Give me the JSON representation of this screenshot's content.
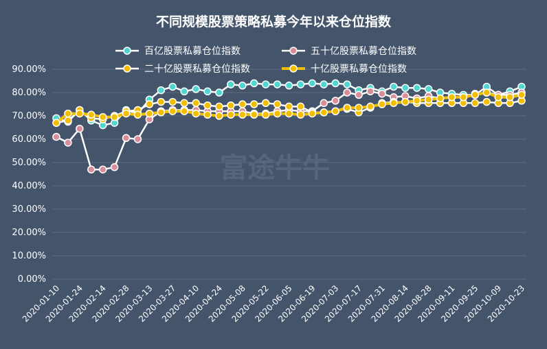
{
  "chart_data": {
    "type": "line",
    "title": "不同规模股票策略私募今年以来仓位指数",
    "watermark_text": "富途牛牛",
    "ylim": [
      0,
      90
    ],
    "y_ticks": [
      "0.00%",
      "10.00%",
      "20.00%",
      "30.00%",
      "40.00%",
      "50.00%",
      "60.00%",
      "70.00%",
      "80.00%",
      "90.00%"
    ],
    "x_tick_labels": [
      "2020-01-10",
      "2020-01-24",
      "2020-02-14",
      "2020-02-28",
      "2020-03-13",
      "2020-03-27",
      "2020-04-10",
      "2020-04-24",
      "2020-05-08",
      "2020-05-22",
      "2020-06-05",
      "2020-06-19",
      "2020-07-03",
      "2020-07-17",
      "2020-07-31",
      "2020-08-14",
      "2020-08-28",
      "2020-09-11",
      "2020-09-25",
      "2020-10-09",
      "2020-10-23"
    ],
    "x": [
      "2020-01-10",
      "2020-01-17",
      "2020-01-24",
      "2020-02-07",
      "2020-02-14",
      "2020-02-21",
      "2020-02-28",
      "2020-03-06",
      "2020-03-13",
      "2020-03-20",
      "2020-03-27",
      "2020-04-03",
      "2020-04-10",
      "2020-04-17",
      "2020-04-24",
      "2020-04-30",
      "2020-05-08",
      "2020-05-15",
      "2020-05-22",
      "2020-05-29",
      "2020-06-05",
      "2020-06-12",
      "2020-06-19",
      "2020-06-24",
      "2020-07-03",
      "2020-07-10",
      "2020-07-17",
      "2020-07-24",
      "2020-07-31",
      "2020-08-07",
      "2020-08-14",
      "2020-08-21",
      "2020-08-28",
      "2020-09-04",
      "2020-09-11",
      "2020-09-18",
      "2020-09-25",
      "2020-09-30",
      "2020-10-09",
      "2020-10-16",
      "2020-10-23"
    ],
    "legend_position": "top",
    "grid": true,
    "series": [
      {
        "name": "百亿股票私募仓位指数",
        "color": "#4fd6cf",
        "values": [
          69,
          67.5,
          72.5,
          68,
          66,
          67,
          72.5,
          71,
          77,
          81,
          82.5,
          80.5,
          81.5,
          80.5,
          80,
          83.5,
          83,
          84,
          83.5,
          83.5,
          83,
          83.5,
          84,
          83.5,
          84,
          83.5,
          81,
          82,
          80.5,
          82.5,
          82,
          82,
          81.5,
          80,
          79.5,
          79,
          79,
          82.5,
          79,
          80.5,
          82.5
        ]
      },
      {
        "name": "五十亿股票私募仓位指数",
        "color": "#d98f9a",
        "values": [
          61,
          58.5,
          64.5,
          47,
          47,
          48,
          60.5,
          60,
          68.5,
          72,
          72.5,
          72.5,
          72.5,
          72,
          72,
          72,
          72,
          71,
          71,
          72,
          72.5,
          72,
          72,
          75.5,
          76.5,
          80,
          79,
          80.5,
          79.5,
          78,
          78.5,
          77.5,
          78.5,
          77.5,
          78,
          78,
          79.5,
          80,
          79,
          79,
          80
        ]
      },
      {
        "name": "二十亿股票私募仓位指数",
        "color": "#f4be00",
        "values": [
          67,
          68,
          72.5,
          69,
          68.5,
          70,
          72,
          72.5,
          75,
          76,
          76,
          75.5,
          75.5,
          74.5,
          74,
          74.5,
          75,
          75,
          75.5,
          75,
          74,
          74,
          71.5,
          71.5,
          72,
          73,
          71.5,
          73.5,
          75.5,
          76,
          76,
          75.5,
          75.5,
          75.5,
          75.5,
          75.5,
          75.5,
          76,
          75.5,
          75.5,
          76.5
        ]
      },
      {
        "name": "十亿股票私募仓位指数",
        "color": "#f4be00",
        "values": [
          67,
          71,
          71,
          70.5,
          69.5,
          69.5,
          71,
          70.5,
          71,
          71.5,
          72,
          72,
          71,
          70.5,
          70,
          70.5,
          70.5,
          70.5,
          70.5,
          71,
          71,
          70.5,
          71,
          71.5,
          72,
          73.5,
          73.5,
          74,
          75,
          75.5,
          76,
          76.5,
          77,
          77.5,
          78,
          78,
          79,
          80,
          78,
          78,
          79
        ]
      }
    ]
  }
}
